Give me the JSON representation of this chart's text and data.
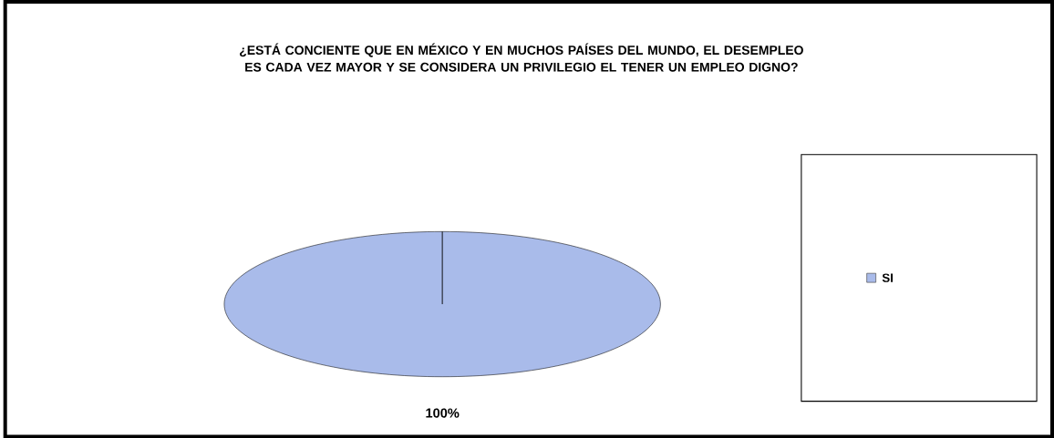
{
  "chart_data": {
    "type": "pie",
    "title": "¿ESTÁ CONCIENTE QUE EN MÉXICO Y EN MUCHOS PAÍSES DEL MUNDO, EL DESEMPLEO ES CADA VEZ MAYOR Y SE CONSIDERA UN PRIVILEGIO EL TENER UN EMPLEO DIGNO?",
    "categories": [
      "SI"
    ],
    "values": [
      100
    ],
    "colors": [
      "#a9bbea"
    ],
    "value_labels": [
      "100%"
    ],
    "legend": "right"
  }
}
